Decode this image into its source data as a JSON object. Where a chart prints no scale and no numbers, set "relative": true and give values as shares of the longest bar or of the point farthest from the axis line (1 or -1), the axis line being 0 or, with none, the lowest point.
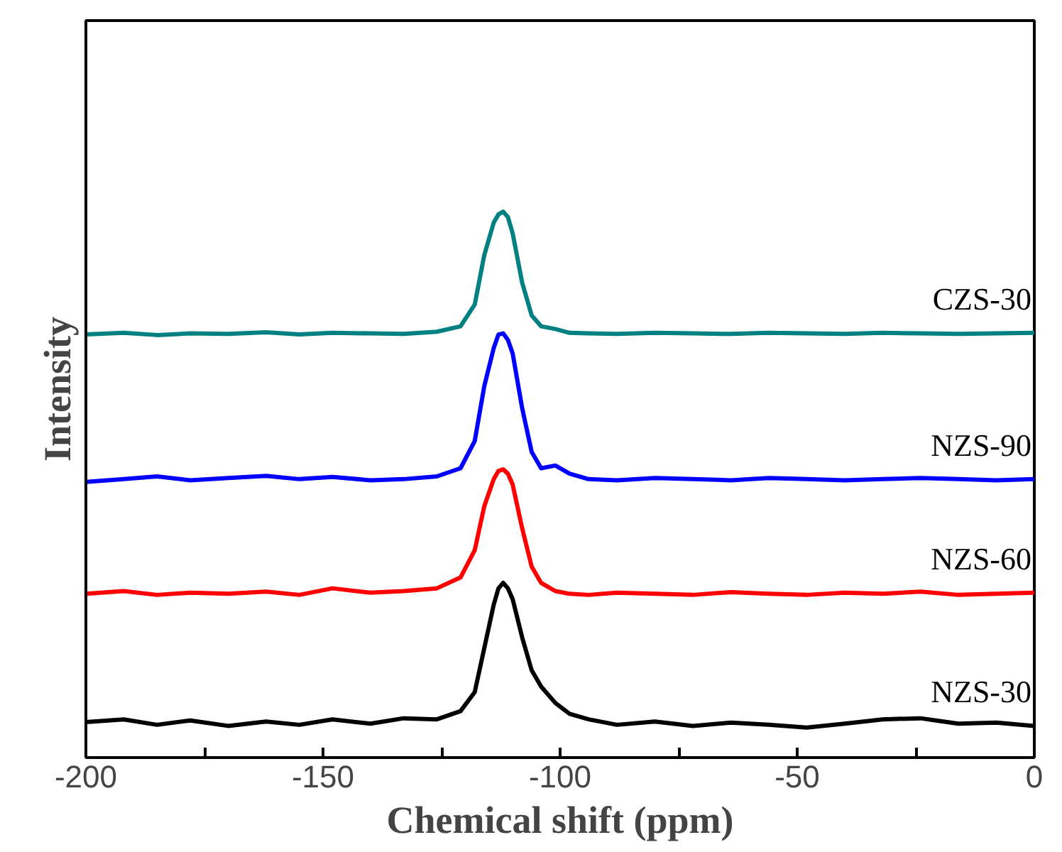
{
  "chart_data": {
    "type": "line",
    "relative": true,
    "xlabel": "Chemical shift (ppm)",
    "ylabel": "Intensity",
    "xlim": [
      -200,
      0
    ],
    "xticks": [
      -200,
      {
        "value": -175,
        "label": null
      },
      -150,
      {
        "value": -125,
        "label": null
      },
      -100,
      {
        "value": -75,
        "label": null
      },
      -50,
      {
        "value": -25,
        "label": null
      },
      0
    ],
    "x": [
      -200,
      -192,
      -185,
      -178,
      -170,
      -162,
      -155,
      -148,
      -140,
      -133,
      -126,
      -121,
      -118,
      -116,
      -114,
      -113,
      -112,
      -111,
      -110,
      -108,
      -106,
      -104,
      -101,
      -98,
      -94,
      -88,
      -80,
      -72,
      -64,
      -56,
      -48,
      -40,
      -32,
      -24,
      -16,
      -8,
      0
    ],
    "legend": false,
    "grid": false,
    "tick_labels": "x",
    "line_style": "solid",
    "series": [
      {
        "name": "NZS-30",
        "color": "#000000",
        "values": [
          0.065,
          0.07,
          0.06,
          0.068,
          0.058,
          0.066,
          0.06,
          0.07,
          0.062,
          0.072,
          0.07,
          0.085,
          0.12,
          0.2,
          0.28,
          0.31,
          0.32,
          0.31,
          0.29,
          0.22,
          0.16,
          0.13,
          0.1,
          0.08,
          0.07,
          0.06,
          0.066,
          0.058,
          0.064,
          0.06,
          0.055,
          0.062,
          0.07,
          0.072,
          0.062,
          0.064,
          0.058
        ]
      },
      {
        "name": "NZS-60",
        "color": "#ff0000",
        "values": [
          0.3,
          0.305,
          0.298,
          0.302,
          0.3,
          0.304,
          0.298,
          0.31,
          0.302,
          0.305,
          0.31,
          0.33,
          0.38,
          0.46,
          0.51,
          0.525,
          0.528,
          0.52,
          0.5,
          0.42,
          0.35,
          0.32,
          0.305,
          0.3,
          0.298,
          0.302,
          0.3,
          0.298,
          0.303,
          0.3,
          0.298,
          0.302,
          0.3,
          0.304,
          0.298,
          0.3,
          0.302
        ]
      },
      {
        "name": "NZS-90",
        "color": "#0000ff",
        "values": [
          0.505,
          0.51,
          0.515,
          0.508,
          0.512,
          0.516,
          0.51,
          0.514,
          0.508,
          0.51,
          0.515,
          0.53,
          0.58,
          0.68,
          0.75,
          0.775,
          0.777,
          0.765,
          0.74,
          0.64,
          0.56,
          0.53,
          0.535,
          0.52,
          0.51,
          0.508,
          0.512,
          0.51,
          0.508,
          0.512,
          0.51,
          0.508,
          0.51,
          0.512,
          0.51,
          0.508,
          0.51
        ]
      },
      {
        "name": "CZS-30",
        "color": "#008080",
        "values": [
          0.775,
          0.778,
          0.774,
          0.777,
          0.776,
          0.779,
          0.775,
          0.778,
          0.777,
          0.776,
          0.78,
          0.79,
          0.83,
          0.92,
          0.98,
          0.995,
          1.0,
          0.99,
          0.96,
          0.87,
          0.81,
          0.79,
          0.785,
          0.778,
          0.777,
          0.776,
          0.778,
          0.777,
          0.776,
          0.778,
          0.777,
          0.776,
          0.778,
          0.777,
          0.776,
          0.777,
          0.778
        ]
      }
    ]
  }
}
